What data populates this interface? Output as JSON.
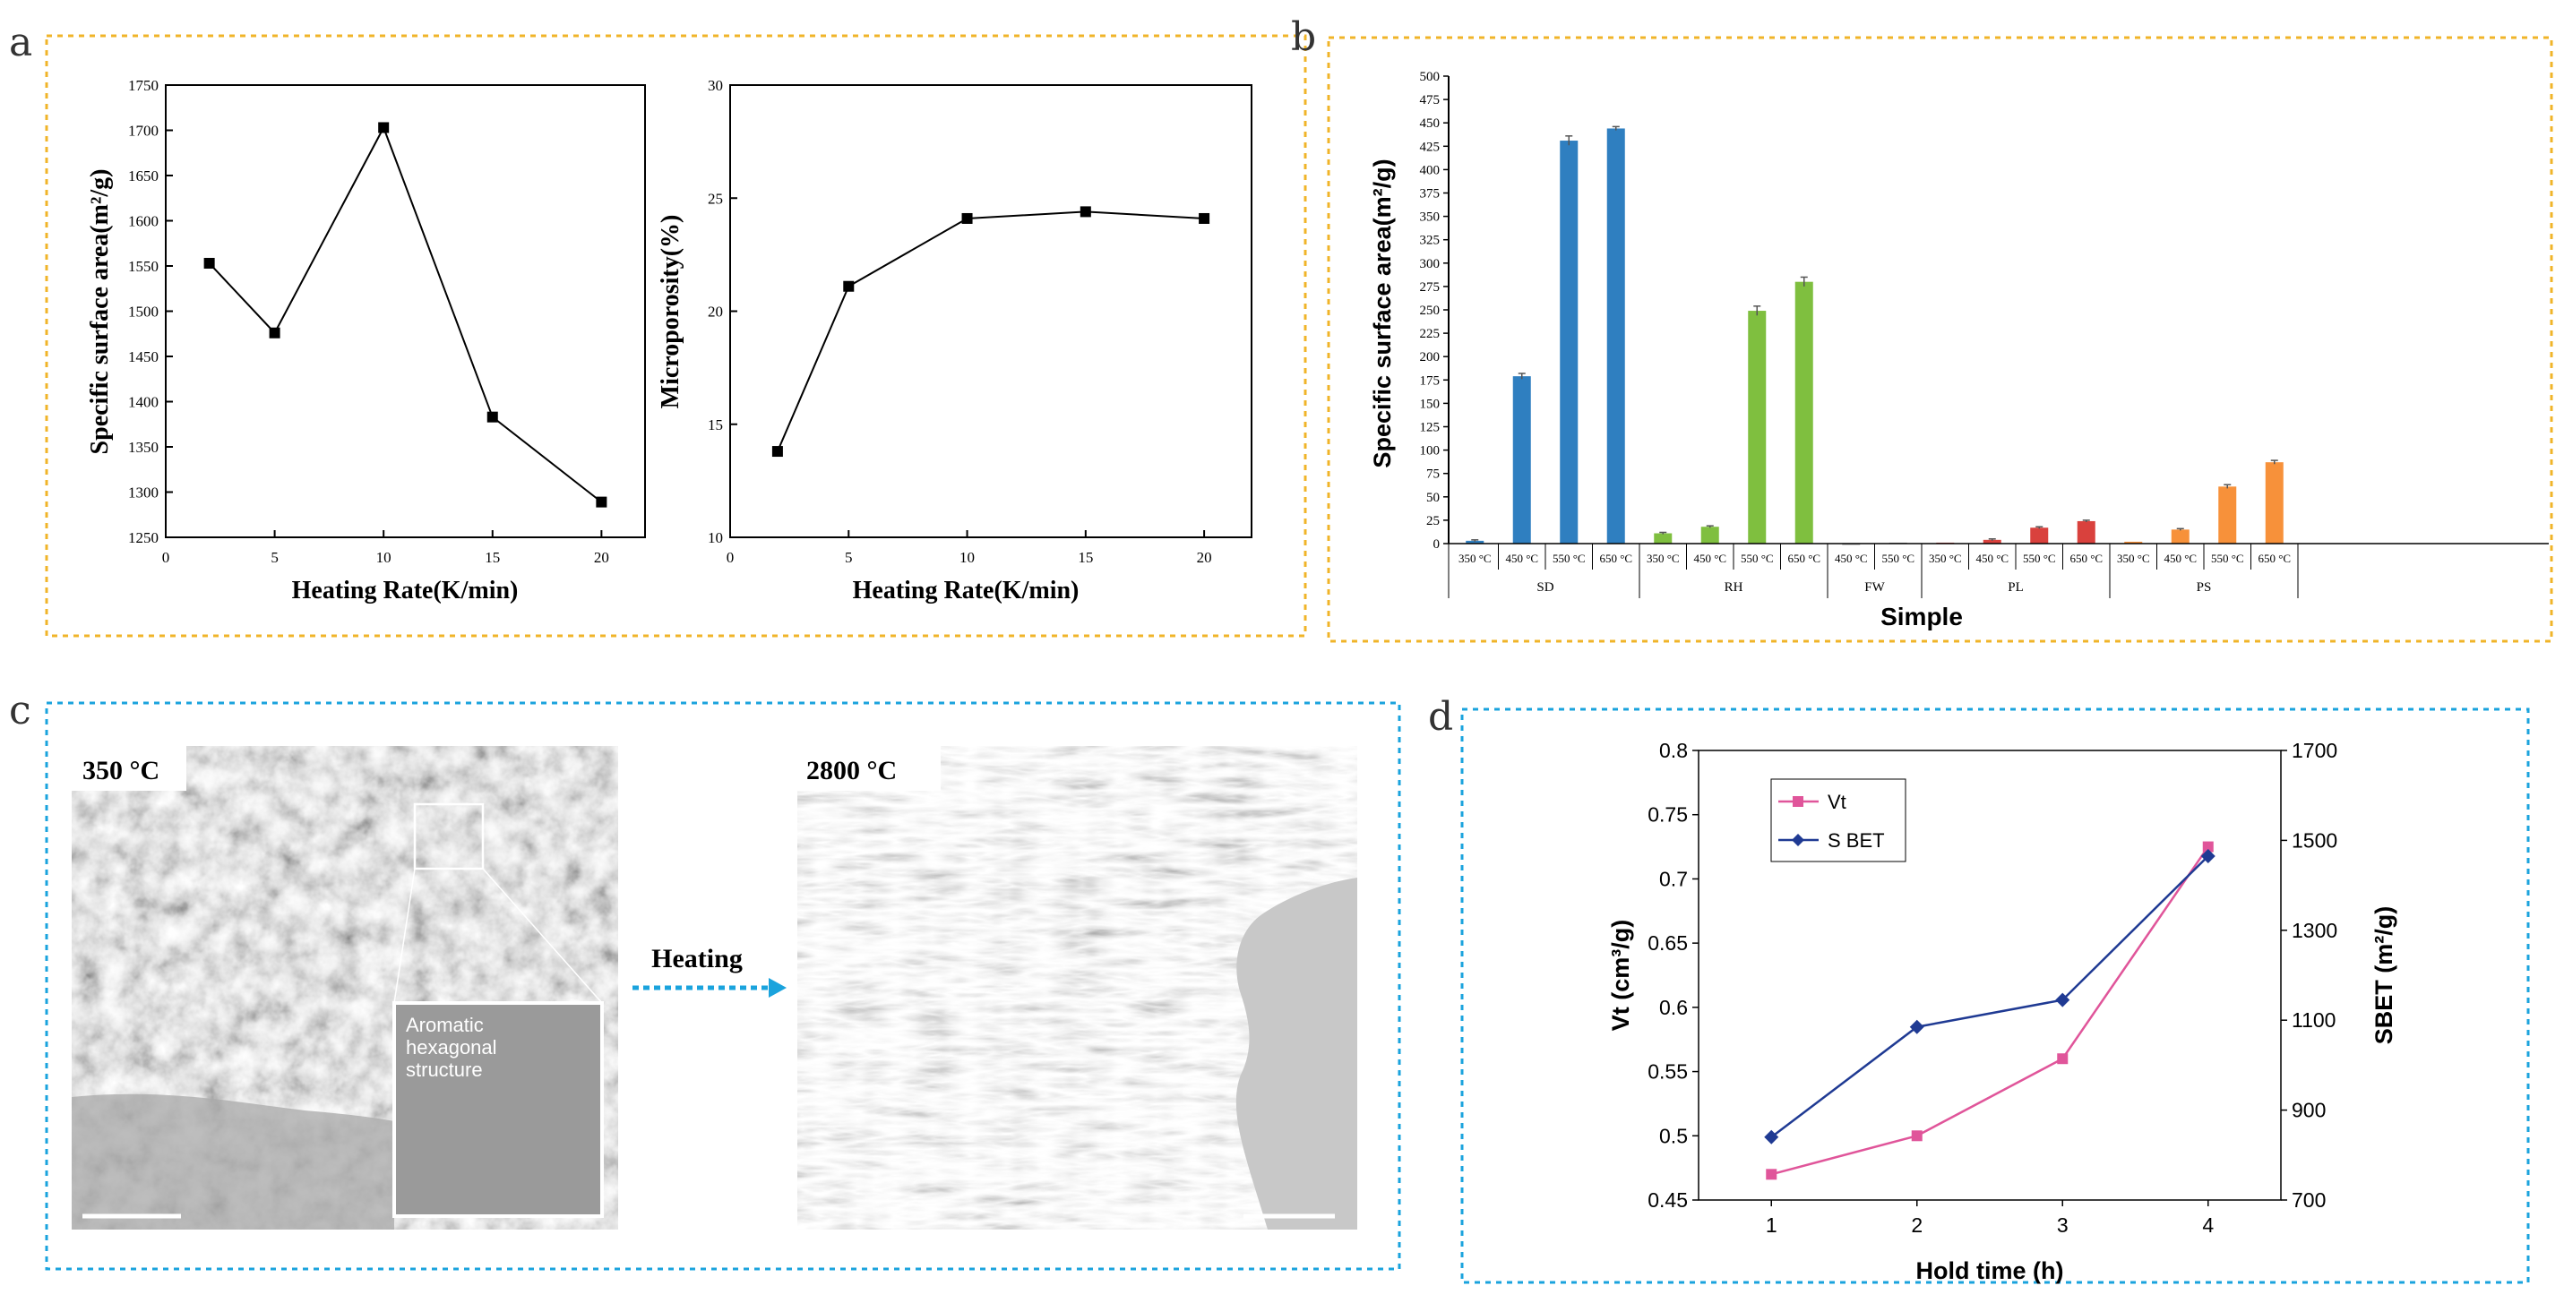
{
  "panel_labels": {
    "a": "a",
    "b": "b",
    "c": "c",
    "d": "d"
  },
  "colors": {
    "panel_ab_border": "#f0b429",
    "panel_cd_border": "#1aa3dd",
    "sd": "#2f7fc0",
    "rh": "#7fbf3f",
    "fw": "#9e9e9e",
    "pl": "#d9413d",
    "ps": "#f7913a",
    "vt": "#e0559a",
    "sbet": "#1f3a93"
  },
  "panel_c": {
    "label_left": "350 °C",
    "label_right": "2800 °C",
    "inset_text_1": "Aromatic",
    "inset_text_2": "hexagonal",
    "inset_text_3": "structure",
    "arrow_label": "Heating"
  },
  "chart_data": [
    {
      "id": "a-left",
      "type": "line",
      "x": [
        2,
        5,
        10,
        15,
        20
      ],
      "y": [
        1553,
        1476,
        1703,
        1383,
        1289
      ],
      "xlim": [
        0,
        22
      ],
      "ylim": [
        1250,
        1750
      ],
      "xticks": [
        "0",
        "5",
        "10",
        "15",
        "20"
      ],
      "yticks": [
        "1250",
        "1300",
        "1350",
        "1400",
        "1450",
        "1500",
        "1550",
        "1600",
        "1650",
        "1700",
        "1750"
      ],
      "xlabel": "Heating Rate(K/min)",
      "ylabel": "Specific surface area(m²/g)"
    },
    {
      "id": "a-right",
      "type": "line",
      "x": [
        2,
        5,
        10,
        15,
        20
      ],
      "y": [
        13.8,
        21.1,
        24.1,
        24.4,
        24.1
      ],
      "xlim": [
        0,
        22
      ],
      "ylim": [
        10,
        30
      ],
      "xticks": [
        "0",
        "5",
        "10",
        "15",
        "20"
      ],
      "yticks": [
        "10",
        "15",
        "20",
        "25",
        "30"
      ],
      "xlabel": "Heating Rate(K/min)",
      "ylabel": "Microporosity(%)"
    },
    {
      "id": "b",
      "type": "bar",
      "ylim": [
        0,
        500
      ],
      "yticks": [
        "0",
        "25",
        "50",
        "75",
        "100",
        "125",
        "150",
        "175",
        "200",
        "225",
        "250",
        "275",
        "300",
        "325",
        "350",
        "375",
        "400",
        "425",
        "450",
        "475",
        "500"
      ],
      "ylabel": "Specific surface area(m²/g)",
      "xlabel": "Simple",
      "groups": [
        {
          "name": "SD",
          "color_key": "sd",
          "categories": [
            "350 °C",
            "450 °C",
            "550 °C",
            "650 °C"
          ],
          "values": [
            3,
            179,
            431,
            444
          ],
          "errors": [
            1,
            3,
            5,
            2
          ]
        },
        {
          "name": "RH",
          "color_key": "rh",
          "categories": [
            "350 °C",
            "450 °C",
            "550 °C",
            "650 °C"
          ],
          "values": [
            11,
            18,
            249,
            280
          ],
          "errors": [
            1,
            1,
            5,
            5
          ]
        },
        {
          "name": "FW",
          "color_key": "fw",
          "categories": [
            "450 °C",
            "550 °C"
          ],
          "values": [
            0,
            1
          ],
          "errors": [
            0,
            0
          ]
        },
        {
          "name": "PL",
          "color_key": "pl",
          "categories": [
            "350 °C",
            "450 °C",
            "550 °C",
            "650 °C"
          ],
          "values": [
            1,
            4,
            17,
            24
          ],
          "errors": [
            0,
            1,
            1,
            1
          ]
        },
        {
          "name": "PS",
          "color_key": "ps",
          "categories": [
            "350 °C",
            "450 °C",
            "550 °C",
            "650 °C"
          ],
          "values": [
            2,
            15,
            61,
            87
          ],
          "errors": [
            0,
            1,
            2,
            2
          ]
        }
      ]
    },
    {
      "id": "d",
      "type": "line",
      "x": [
        1,
        2,
        3,
        4
      ],
      "xticks": [
        "1",
        "2",
        "3",
        "4"
      ],
      "xlim": [
        0.5,
        4.5
      ],
      "xlabel": "Hold time (h)",
      "y_left": {
        "label": "Vt (cm³/g)",
        "ylim": [
          0.45,
          0.8
        ],
        "ticks": [
          "0.45",
          "0.5",
          "0.55",
          "0.6",
          "0.65",
          "0.7",
          "0.75",
          "0.8"
        ]
      },
      "y_right": {
        "label": "SBET (m²/g)",
        "ylim": [
          700,
          1700
        ],
        "ticks": [
          "700",
          "900",
          "1100",
          "1300",
          "1500",
          "1700"
        ]
      },
      "series": [
        {
          "name": "Vt",
          "axis": "left",
          "color_key": "vt",
          "values": [
            0.47,
            0.5,
            0.56,
            0.725
          ]
        },
        {
          "name": "S BET",
          "axis": "right",
          "color_key": "sbet",
          "values": [
            840,
            1085,
            1145,
            1465
          ]
        }
      ]
    }
  ]
}
